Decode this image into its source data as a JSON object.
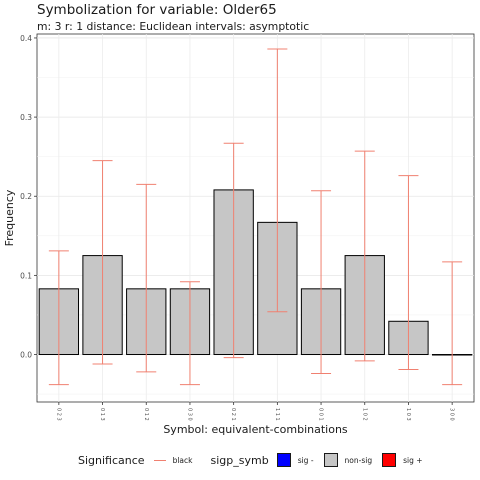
{
  "title": "Symbolization for variable: Older65",
  "subtitle": "m: 3  r:  1  distance:  Euclidean  intervals:  asymptotic",
  "chart_data": {
    "type": "bar",
    "xlabel": "Symbol: equivalent-combinations",
    "ylabel": "Frequency",
    "ylim": [
      -0.06,
      0.405
    ],
    "yticks": [
      0.0,
      0.1,
      0.2,
      0.3,
      0.4
    ],
    "ytick_labels": [
      "0.0",
      "0.1",
      "0.2",
      "0.3",
      "0.4"
    ],
    "categories": [
      "0 2 3",
      "0 1 3",
      "0 1 2",
      "0 3 0",
      "0 2 1",
      "1 1 1",
      "0 0 1",
      "1 0 2",
      "1 0 3",
      "3 0 0"
    ],
    "values": [
      0.083,
      0.125,
      0.083,
      0.083,
      0.208,
      0.167,
      0.083,
      0.125,
      0.042,
      0.0
    ],
    "significance": [
      "non-sig",
      "non-sig",
      "non-sig",
      "non-sig",
      "non-sig",
      "non-sig",
      "non-sig",
      "non-sig",
      "non-sig",
      "non-sig"
    ],
    "error_low": [
      -0.038,
      -0.012,
      -0.022,
      -0.038,
      -0.004,
      0.054,
      -0.024,
      -0.008,
      -0.019,
      -0.038
    ],
    "error_high": [
      0.131,
      0.245,
      0.215,
      0.092,
      0.267,
      0.386,
      0.207,
      0.257,
      0.226,
      0.117
    ],
    "grid": true,
    "colors": {
      "bar_fill": "#c6c6c6",
      "error_bar": "#f08070",
      "sig_minus": "#0000ff",
      "non_sig": "#c6c6c6",
      "sig_plus": "#ff0000"
    }
  },
  "legend": {
    "significance_title": "Significance",
    "significance_item": "black",
    "sigp_title": "sigp_symb",
    "items": [
      "sig -",
      "non-sig",
      "sig +"
    ]
  }
}
